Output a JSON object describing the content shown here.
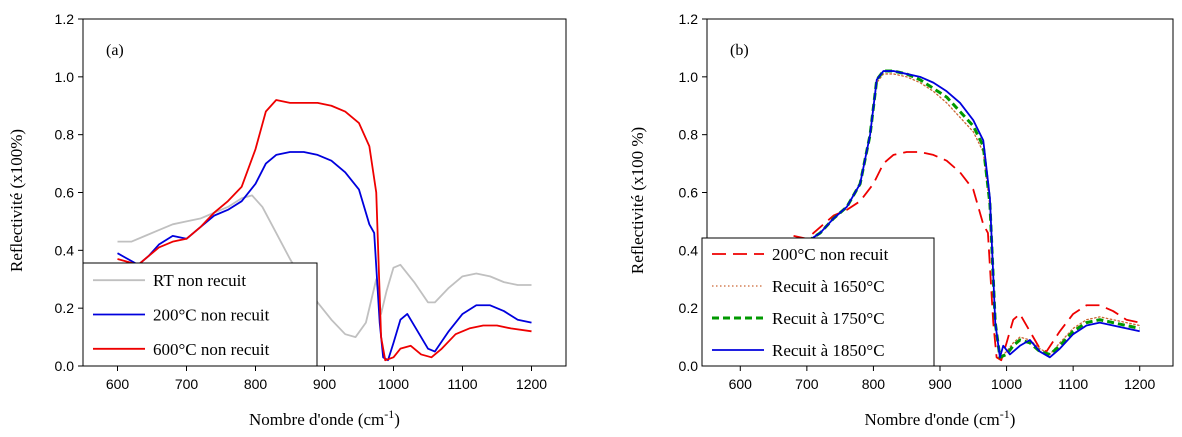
{
  "chart_data": [
    {
      "type": "line",
      "panel_label": "(a)",
      "xlabel_main": "Nombre d'onde (cm",
      "xlabel_sup": "-1",
      "xlabel_end": ")",
      "ylabel": "Reflectivité (x100%)",
      "xlim": [
        550,
        1250
      ],
      "ylim": [
        0.0,
        1.2
      ],
      "x_ticks": [
        "600",
        "700",
        "800",
        "900",
        "1000",
        "1100",
        "1200"
      ],
      "y_ticks": [
        "0.0",
        "0.2",
        "0.4",
        "0.6",
        "0.8",
        "1.0",
        "1.2"
      ],
      "legend_position": "bottom-left",
      "series": [
        {
          "name": "RT non recuit",
          "color": "#c0c0c0",
          "dash": "solid",
          "points": [
            [
              600,
              0.43
            ],
            [
              620,
              0.43
            ],
            [
              640,
              0.45
            ],
            [
              660,
              0.47
            ],
            [
              680,
              0.49
            ],
            [
              700,
              0.5
            ],
            [
              720,
              0.51
            ],
            [
              740,
              0.53
            ],
            [
              760,
              0.55
            ],
            [
              780,
              0.58
            ],
            [
              795,
              0.59
            ],
            [
              810,
              0.55
            ],
            [
              830,
              0.46
            ],
            [
              850,
              0.37
            ],
            [
              870,
              0.29
            ],
            [
              890,
              0.22
            ],
            [
              910,
              0.16
            ],
            [
              930,
              0.11
            ],
            [
              945,
              0.1
            ],
            [
              960,
              0.15
            ],
            [
              975,
              0.3
            ],
            [
              982,
              0.18
            ],
            [
              990,
              0.26
            ],
            [
              1000,
              0.34
            ],
            [
              1010,
              0.35
            ],
            [
              1030,
              0.29
            ],
            [
              1050,
              0.22
            ],
            [
              1060,
              0.22
            ],
            [
              1080,
              0.27
            ],
            [
              1100,
              0.31
            ],
            [
              1120,
              0.32
            ],
            [
              1140,
              0.31
            ],
            [
              1160,
              0.29
            ],
            [
              1180,
              0.28
            ],
            [
              1200,
              0.28
            ]
          ]
        },
        {
          "name": "200°C non recuit",
          "color": "#0000dd",
          "dash": "solid",
          "points": [
            [
              600,
              0.39
            ],
            [
              615,
              0.37
            ],
            [
              630,
              0.35
            ],
            [
              645,
              0.38
            ],
            [
              660,
              0.42
            ],
            [
              680,
              0.45
            ],
            [
              700,
              0.44
            ],
            [
              720,
              0.48
            ],
            [
              740,
              0.52
            ],
            [
              760,
              0.54
            ],
            [
              780,
              0.57
            ],
            [
              800,
              0.63
            ],
            [
              815,
              0.7
            ],
            [
              830,
              0.73
            ],
            [
              850,
              0.74
            ],
            [
              870,
              0.74
            ],
            [
              890,
              0.73
            ],
            [
              910,
              0.71
            ],
            [
              930,
              0.67
            ],
            [
              950,
              0.61
            ],
            [
              965,
              0.49
            ],
            [
              972,
              0.46
            ],
            [
              980,
              0.15
            ],
            [
              985,
              0.03
            ],
            [
              992,
              0.02
            ],
            [
              1000,
              0.08
            ],
            [
              1010,
              0.16
            ],
            [
              1020,
              0.18
            ],
            [
              1035,
              0.12
            ],
            [
              1050,
              0.06
            ],
            [
              1060,
              0.05
            ],
            [
              1080,
              0.12
            ],
            [
              1100,
              0.18
            ],
            [
              1120,
              0.21
            ],
            [
              1140,
              0.21
            ],
            [
              1160,
              0.19
            ],
            [
              1180,
              0.16
            ],
            [
              1200,
              0.15
            ]
          ]
        },
        {
          "name": "600°C non recuit",
          "color": "#ee0000",
          "dash": "solid",
          "points": [
            [
              600,
              0.37
            ],
            [
              615,
              0.36
            ],
            [
              630,
              0.35
            ],
            [
              645,
              0.38
            ],
            [
              660,
              0.41
            ],
            [
              680,
              0.43
            ],
            [
              700,
              0.44
            ],
            [
              720,
              0.48
            ],
            [
              740,
              0.53
            ],
            [
              760,
              0.57
            ],
            [
              780,
              0.62
            ],
            [
              800,
              0.75
            ],
            [
              815,
              0.88
            ],
            [
              830,
              0.92
            ],
            [
              850,
              0.91
            ],
            [
              870,
              0.91
            ],
            [
              890,
              0.91
            ],
            [
              910,
              0.9
            ],
            [
              930,
              0.88
            ],
            [
              950,
              0.84
            ],
            [
              965,
              0.76
            ],
            [
              975,
              0.6
            ],
            [
              982,
              0.1
            ],
            [
              988,
              0.02
            ],
            [
              1000,
              0.03
            ],
            [
              1010,
              0.06
            ],
            [
              1025,
              0.07
            ],
            [
              1040,
              0.04
            ],
            [
              1055,
              0.03
            ],
            [
              1070,
              0.06
            ],
            [
              1090,
              0.11
            ],
            [
              1110,
              0.13
            ],
            [
              1130,
              0.14
            ],
            [
              1150,
              0.14
            ],
            [
              1170,
              0.13
            ],
            [
              1200,
              0.12
            ]
          ]
        }
      ]
    },
    {
      "type": "line",
      "panel_label": "(b)",
      "xlabel_main": "Nombre d'onde (cm",
      "xlabel_sup": "-1",
      "xlabel_end": ")",
      "ylabel": "Reflectivité (x100 %)",
      "xlim": [
        550,
        1250
      ],
      "ylim": [
        0.0,
        1.2
      ],
      "x_ticks": [
        "600",
        "700",
        "800",
        "900",
        "1000",
        "1100",
        "1200"
      ],
      "y_ticks": [
        "0.0",
        "0.2",
        "0.4",
        "0.6",
        "0.8",
        "1.0",
        "1.2"
      ],
      "legend_position": "bottom-left",
      "series": [
        {
          "name": "200°C non recuit",
          "color": "#ee0000",
          "dash": "long-dash",
          "points": [
            [
              680,
              0.45
            ],
            [
              700,
              0.44
            ],
            [
              720,
              0.48
            ],
            [
              740,
              0.52
            ],
            [
              760,
              0.54
            ],
            [
              780,
              0.57
            ],
            [
              800,
              0.63
            ],
            [
              815,
              0.7
            ],
            [
              830,
              0.73
            ],
            [
              850,
              0.74
            ],
            [
              870,
              0.74
            ],
            [
              890,
              0.73
            ],
            [
              910,
              0.71
            ],
            [
              930,
              0.67
            ],
            [
              950,
              0.61
            ],
            [
              965,
              0.49
            ],
            [
              972,
              0.46
            ],
            [
              980,
              0.15
            ],
            [
              985,
              0.03
            ],
            [
              992,
              0.02
            ],
            [
              1000,
              0.08
            ],
            [
              1010,
              0.16
            ],
            [
              1020,
              0.18
            ],
            [
              1035,
              0.12
            ],
            [
              1050,
              0.06
            ],
            [
              1060,
              0.05
            ],
            [
              1080,
              0.12
            ],
            [
              1100,
              0.18
            ],
            [
              1120,
              0.21
            ],
            [
              1140,
              0.21
            ],
            [
              1160,
              0.19
            ],
            [
              1180,
              0.16
            ],
            [
              1200,
              0.15
            ]
          ]
        },
        {
          "name": "Recuit à 1650°C",
          "color": "#cc6633",
          "dash": "dotted",
          "points": [
            [
              700,
              0.43
            ],
            [
              720,
              0.46
            ],
            [
              740,
              0.51
            ],
            [
              760,
              0.55
            ],
            [
              780,
              0.63
            ],
            [
              795,
              0.8
            ],
            [
              805,
              0.98
            ],
            [
              815,
              1.01
            ],
            [
              830,
              1.01
            ],
            [
              850,
              1.0
            ],
            [
              870,
              0.98
            ],
            [
              890,
              0.95
            ],
            [
              910,
              0.91
            ],
            [
              930,
              0.86
            ],
            [
              950,
              0.81
            ],
            [
              965,
              0.74
            ],
            [
              975,
              0.55
            ],
            [
              983,
              0.15
            ],
            [
              990,
              0.03
            ],
            [
              1000,
              0.05
            ],
            [
              1010,
              0.08
            ],
            [
              1020,
              0.1
            ],
            [
              1035,
              0.09
            ],
            [
              1050,
              0.06
            ],
            [
              1065,
              0.04
            ],
            [
              1080,
              0.08
            ],
            [
              1100,
              0.13
            ],
            [
              1120,
              0.16
            ],
            [
              1140,
              0.17
            ],
            [
              1160,
              0.16
            ],
            [
              1180,
              0.15
            ],
            [
              1200,
              0.14
            ]
          ]
        },
        {
          "name": "Recuit à 1750°C",
          "color": "#009900",
          "dash": "dashed",
          "points": [
            [
              700,
              0.43
            ],
            [
              720,
              0.46
            ],
            [
              740,
              0.51
            ],
            [
              760,
              0.55
            ],
            [
              780,
              0.63
            ],
            [
              795,
              0.8
            ],
            [
              805,
              0.99
            ],
            [
              815,
              1.02
            ],
            [
              830,
              1.02
            ],
            [
              850,
              1.01
            ],
            [
              870,
              0.99
            ],
            [
              890,
              0.96
            ],
            [
              910,
              0.93
            ],
            [
              930,
              0.88
            ],
            [
              950,
              0.83
            ],
            [
              965,
              0.76
            ],
            [
              975,
              0.56
            ],
            [
              983,
              0.15
            ],
            [
              990,
              0.03
            ],
            [
              1000,
              0.04
            ],
            [
              1010,
              0.07
            ],
            [
              1020,
              0.09
            ],
            [
              1035,
              0.08
            ],
            [
              1050,
              0.05
            ],
            [
              1065,
              0.04
            ],
            [
              1080,
              0.07
            ],
            [
              1100,
              0.12
            ],
            [
              1120,
              0.15
            ],
            [
              1140,
              0.16
            ],
            [
              1160,
              0.15
            ],
            [
              1180,
              0.14
            ],
            [
              1200,
              0.13
            ]
          ]
        },
        {
          "name": "Recuit à 1850°C",
          "color": "#0000dd",
          "dash": "solid",
          "points": [
            [
              700,
              0.43
            ],
            [
              720,
              0.46
            ],
            [
              740,
              0.51
            ],
            [
              760,
              0.55
            ],
            [
              780,
              0.63
            ],
            [
              795,
              0.8
            ],
            [
              805,
              0.99
            ],
            [
              815,
              1.02
            ],
            [
              830,
              1.02
            ],
            [
              850,
              1.01
            ],
            [
              870,
              1.0
            ],
            [
              890,
              0.98
            ],
            [
              910,
              0.95
            ],
            [
              930,
              0.91
            ],
            [
              950,
              0.85
            ],
            [
              965,
              0.78
            ],
            [
              975,
              0.58
            ],
            [
              983,
              0.15
            ],
            [
              990,
              0.03
            ],
            [
              995,
              0.07
            ],
            [
              1005,
              0.04
            ],
            [
              1020,
              0.07
            ],
            [
              1035,
              0.09
            ],
            [
              1050,
              0.05
            ],
            [
              1065,
              0.03
            ],
            [
              1080,
              0.06
            ],
            [
              1100,
              0.11
            ],
            [
              1120,
              0.14
            ],
            [
              1140,
              0.15
            ],
            [
              1160,
              0.14
            ],
            [
              1180,
              0.13
            ],
            [
              1200,
              0.12
            ]
          ]
        }
      ]
    }
  ]
}
